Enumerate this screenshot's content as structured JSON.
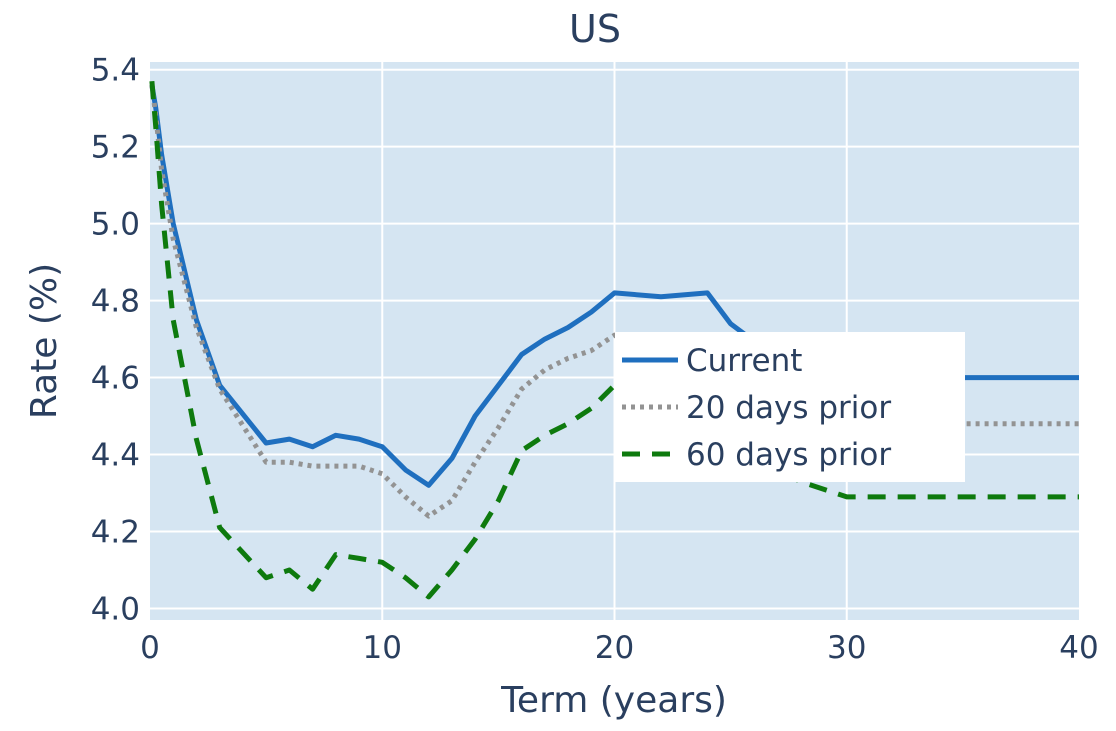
{
  "chart_data": {
    "type": "line",
    "title": "US",
    "xlabel": "Term (years)",
    "ylabel": "Rate (%)",
    "xlim": [
      0,
      40
    ],
    "ylim": [
      3.97,
      5.42
    ],
    "x_ticks": [
      0,
      10,
      20,
      30,
      40
    ],
    "x_tick_labels": [
      "0",
      "10",
      "20",
      "30",
      "40"
    ],
    "y_ticks": [
      4.0,
      4.2,
      4.4,
      4.6,
      4.8,
      5.0,
      5.2,
      5.4
    ],
    "y_tick_labels": [
      "4.0",
      "4.2",
      "4.4",
      "4.6",
      "4.8",
      "5.0",
      "5.2",
      "5.4"
    ],
    "grid": true,
    "legend_position": "center-right",
    "plot_background": "#d5e5f2",
    "series": [
      {
        "name": "Current",
        "color": "#1f6fbf",
        "dash": "solid",
        "x": [
          0.08,
          0.25,
          0.5,
          1,
          2,
          3,
          5,
          6,
          7,
          8,
          9,
          10,
          11,
          12,
          13,
          14,
          15,
          16,
          17,
          18,
          19,
          20,
          22,
          24,
          25,
          27,
          30,
          35,
          40
        ],
        "y": [
          5.36,
          5.3,
          5.18,
          5.0,
          4.75,
          4.58,
          4.43,
          4.44,
          4.42,
          4.45,
          4.44,
          4.42,
          4.36,
          4.32,
          4.39,
          4.5,
          4.58,
          4.66,
          4.7,
          4.73,
          4.77,
          4.82,
          4.81,
          4.82,
          4.74,
          4.65,
          4.6,
          4.6,
          4.6
        ]
      },
      {
        "name": "20 days prior",
        "color": "#939393",
        "dash": "dotted",
        "x": [
          0.08,
          0.25,
          0.5,
          1,
          2,
          3,
          5,
          6,
          7,
          8,
          9,
          10,
          11,
          12,
          13,
          14,
          15,
          16,
          17,
          18,
          19,
          20,
          25,
          30,
          35,
          40
        ],
        "y": [
          5.36,
          5.28,
          5.14,
          4.96,
          4.73,
          4.57,
          4.38,
          4.38,
          4.37,
          4.37,
          4.37,
          4.35,
          4.29,
          4.24,
          4.28,
          4.38,
          4.47,
          4.57,
          4.62,
          4.65,
          4.67,
          4.71,
          4.6,
          4.49,
          4.48,
          4.48
        ]
      },
      {
        "name": "60 days prior",
        "color": "#0e7a0e",
        "dash": "dashed",
        "x": [
          0.08,
          0.25,
          0.5,
          1,
          2,
          3,
          5,
          6,
          7,
          8,
          9,
          10,
          11,
          12,
          13,
          14,
          15,
          16,
          17,
          18,
          19,
          20,
          25,
          28,
          30,
          35,
          40
        ],
        "y": [
          5.37,
          5.25,
          5.05,
          4.75,
          4.44,
          4.21,
          4.08,
          4.1,
          4.05,
          4.14,
          4.13,
          4.12,
          4.08,
          4.03,
          4.1,
          4.18,
          4.28,
          4.41,
          4.45,
          4.48,
          4.52,
          4.58,
          4.43,
          4.33,
          4.29,
          4.29,
          4.29
        ]
      }
    ]
  }
}
